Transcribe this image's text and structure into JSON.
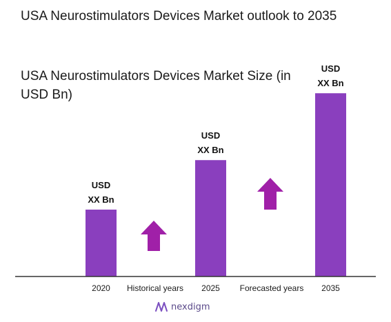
{
  "page": {
    "title": "USA Neurostimulators Devices Market outlook to 2035",
    "brand": "nexdigm"
  },
  "chart_data": {
    "type": "bar",
    "title": "USA Neurostimulators Devices Market Size (in USD Bn)",
    "categories": [
      "2020",
      "2025",
      "2035"
    ],
    "values": [
      1,
      1.74,
      2.74
    ],
    "value_labels": [
      [
        "USD",
        "XX Bn"
      ],
      [
        "USD",
        "XX Bn"
      ],
      [
        "USD",
        "XX Bn"
      ]
    ],
    "period_labels": [
      "Historical years",
      "Forecasted years"
    ],
    "bar_color": "#8a3fbe",
    "arrow_color": "#a020a8",
    "axis_color": "#333333",
    "grid": false
  }
}
